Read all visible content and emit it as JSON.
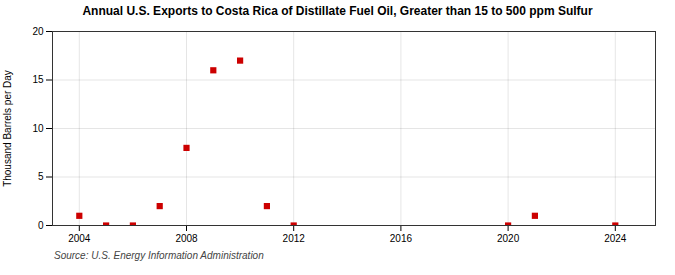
{
  "chart_data": {
    "type": "scatter",
    "title": "Annual U.S. Exports to Costa Rica of Distillate Fuel Oil, Greater than 15 to 500 ppm Sulfur",
    "ylabel": "Thousand Barrels per Day",
    "source": "Source: U.S. Energy Information Administration",
    "x": [
      2004,
      2005,
      2006,
      2007,
      2008,
      2009,
      2010,
      2011,
      2012,
      2020,
      2021,
      2024
    ],
    "values": [
      1.0,
      0.0,
      0.0,
      2.0,
      8.0,
      16.0,
      17.0,
      2.0,
      0.0,
      0.0,
      1.0,
      0.0
    ],
    "color": "#cc0000",
    "marker": "square",
    "xlim": [
      2003,
      2025.5
    ],
    "xticks": [
      2004,
      2008,
      2012,
      2016,
      2020,
      2024
    ],
    "ylim": [
      0,
      20
    ],
    "yticks": [
      0,
      5,
      10,
      15,
      20
    ],
    "grid": true
  }
}
